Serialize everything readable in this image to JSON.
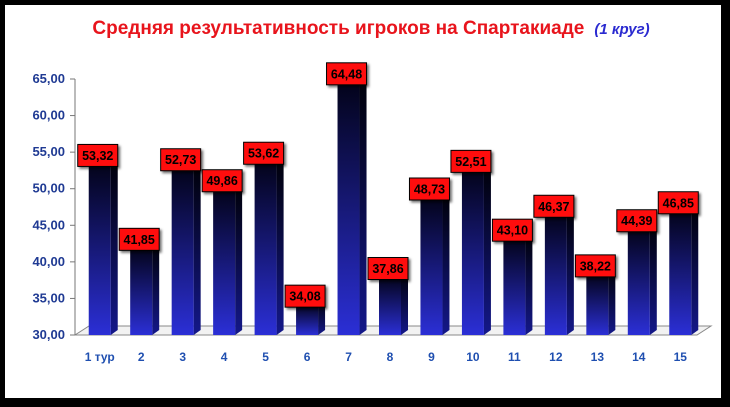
{
  "chart_data": {
    "type": "bar",
    "title": "Средняя результативность игроков на Спартакиаде",
    "subtitle": "(1 круг)",
    "categories": [
      "1 тур",
      "2",
      "3",
      "4",
      "5",
      "6",
      "7",
      "8",
      "9",
      "10",
      "11",
      "12",
      "13",
      "14",
      "15"
    ],
    "values": [
      53.32,
      41.85,
      52.73,
      49.86,
      53.62,
      34.08,
      64.48,
      37.86,
      48.73,
      52.51,
      43.1,
      46.37,
      38.22,
      44.39,
      46.85
    ],
    "data_labels": [
      "53,32",
      "41,85",
      "52,73",
      "49,86",
      "53,62",
      "34,08",
      "64,48",
      "37,86",
      "48,73",
      "52,51",
      "43,10",
      "46,37",
      "38,22",
      "44,39",
      "46,85"
    ],
    "ylim": [
      30,
      65
    ],
    "yticks": [
      "30,00",
      "35,00",
      "40,00",
      "45,00",
      "50,00",
      "55,00",
      "60,00",
      "65,00"
    ],
    "xlabel": "",
    "ylabel": "",
    "grid": false,
    "legend": "none",
    "colors": {
      "bar_top": "#03031a",
      "bar_bottom": "#2b2fd6",
      "label_fill": "#ff1010",
      "title": "#e8141c",
      "subtitle": "#2a2ad0"
    }
  }
}
